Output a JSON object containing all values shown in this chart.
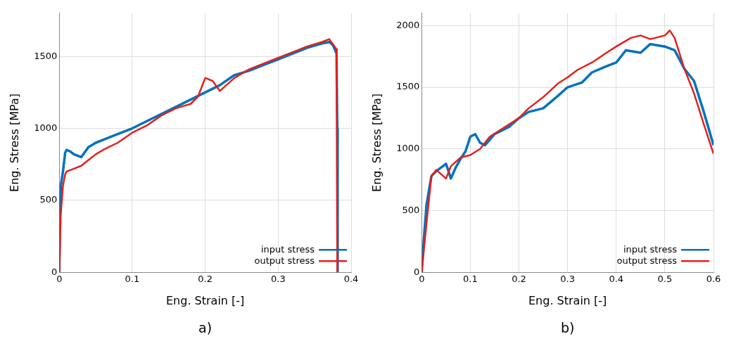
{
  "chart_data": [
    {
      "type": "line",
      "xlabel": "Eng. Strain [-]",
      "ylabel": "Eng. Stress [MPa]",
      "xlim": [
        0,
        0.4
      ],
      "xticks": [
        0,
        0.1,
        0.2,
        0.3,
        0.4
      ],
      "ylim": [
        0,
        1800
      ],
      "yticks": [
        0,
        500,
        1000,
        1500
      ],
      "grid": true,
      "legend": "bottom right",
      "marker": "none",
      "line_style": "solid",
      "annotations": [
        "a)"
      ],
      "series": [
        {
          "name": "input stress",
          "color": "#0072bd",
          "x": [
            0,
            0.001,
            0.002,
            0.005,
            0.008,
            0.01,
            0.015,
            0.02,
            0.03,
            0.04,
            0.05,
            0.06,
            0.08,
            0.1,
            0.12,
            0.14,
            0.16,
            0.18,
            0.2,
            0.22,
            0.24,
            0.26,
            0.28,
            0.3,
            0.32,
            0.34,
            0.36,
            0.37,
            0.375,
            0.38,
            0.381,
            0.3815
          ],
          "values": [
            0,
            400,
            600,
            700,
            830,
            850,
            840,
            820,
            800,
            870,
            900,
            920,
            960,
            1000,
            1050,
            1100,
            1150,
            1200,
            1250,
            1300,
            1370,
            1400,
            1440,
            1480,
            1520,
            1560,
            1590,
            1600,
            1580,
            1520,
            1000,
            0
          ]
        },
        {
          "name": "output stress",
          "color": "#e3211c",
          "x": [
            0,
            0.002,
            0.005,
            0.008,
            0.01,
            0.02,
            0.03,
            0.04,
            0.05,
            0.06,
            0.08,
            0.1,
            0.12,
            0.14,
            0.16,
            0.18,
            0.19,
            0.2,
            0.21,
            0.22,
            0.24,
            0.26,
            0.28,
            0.3,
            0.32,
            0.34,
            0.36,
            0.37,
            0.38,
            0.3805,
            0.381
          ],
          "values": [
            0,
            400,
            600,
            680,
            700,
            720,
            740,
            780,
            820,
            850,
            900,
            970,
            1020,
            1090,
            1140,
            1170,
            1220,
            1350,
            1330,
            1260,
            1350,
            1410,
            1450,
            1490,
            1530,
            1570,
            1600,
            1620,
            1550,
            1100,
            0
          ]
        }
      ]
    },
    {
      "type": "line",
      "xlabel": "Eng. Strain [-]",
      "ylabel": "Eng. Stress [MPa]",
      "xlim": [
        0,
        0.6
      ],
      "xticks": [
        0,
        0.1,
        0.2,
        0.3,
        0.4,
        0.5,
        0.6
      ],
      "ylim": [
        0,
        2100
      ],
      "yticks": [
        0,
        500,
        1000,
        1500,
        2000
      ],
      "grid": true,
      "legend": "bottom right",
      "marker": "none",
      "line_style": "solid",
      "annotations": [
        "b)"
      ],
      "series": [
        {
          "name": "input stress",
          "color": "#0072bd",
          "x": [
            0,
            0.005,
            0.01,
            0.02,
            0.03,
            0.04,
            0.05,
            0.06,
            0.07,
            0.08,
            0.09,
            0.1,
            0.11,
            0.12,
            0.13,
            0.15,
            0.18,
            0.2,
            0.22,
            0.25,
            0.28,
            0.3,
            0.33,
            0.35,
            0.38,
            0.4,
            0.42,
            0.45,
            0.47,
            0.5,
            0.52,
            0.54,
            0.56,
            0.58,
            0.6
          ],
          "values": [
            0,
            300,
            550,
            780,
            820,
            850,
            880,
            760,
            850,
            920,
            980,
            1100,
            1120,
            1050,
            1030,
            1120,
            1180,
            1250,
            1300,
            1330,
            1430,
            1500,
            1540,
            1620,
            1670,
            1700,
            1800,
            1780,
            1850,
            1830,
            1800,
            1650,
            1550,
            1300,
            1030
          ]
        },
        {
          "name": "output stress",
          "color": "#e3211c",
          "x": [
            0,
            0.01,
            0.02,
            0.03,
            0.05,
            0.06,
            0.08,
            0.1,
            0.12,
            0.14,
            0.16,
            0.2,
            0.22,
            0.25,
            0.28,
            0.3,
            0.32,
            0.35,
            0.38,
            0.4,
            0.43,
            0.45,
            0.47,
            0.5,
            0.51,
            0.52,
            0.54,
            0.56,
            0.58,
            0.6
          ],
          "values": [
            0,
            400,
            780,
            830,
            760,
            860,
            930,
            950,
            1000,
            1100,
            1150,
            1250,
            1330,
            1420,
            1530,
            1580,
            1640,
            1700,
            1780,
            1830,
            1900,
            1920,
            1890,
            1920,
            1960,
            1900,
            1650,
            1450,
            1200,
            960
          ]
        }
      ]
    }
  ]
}
